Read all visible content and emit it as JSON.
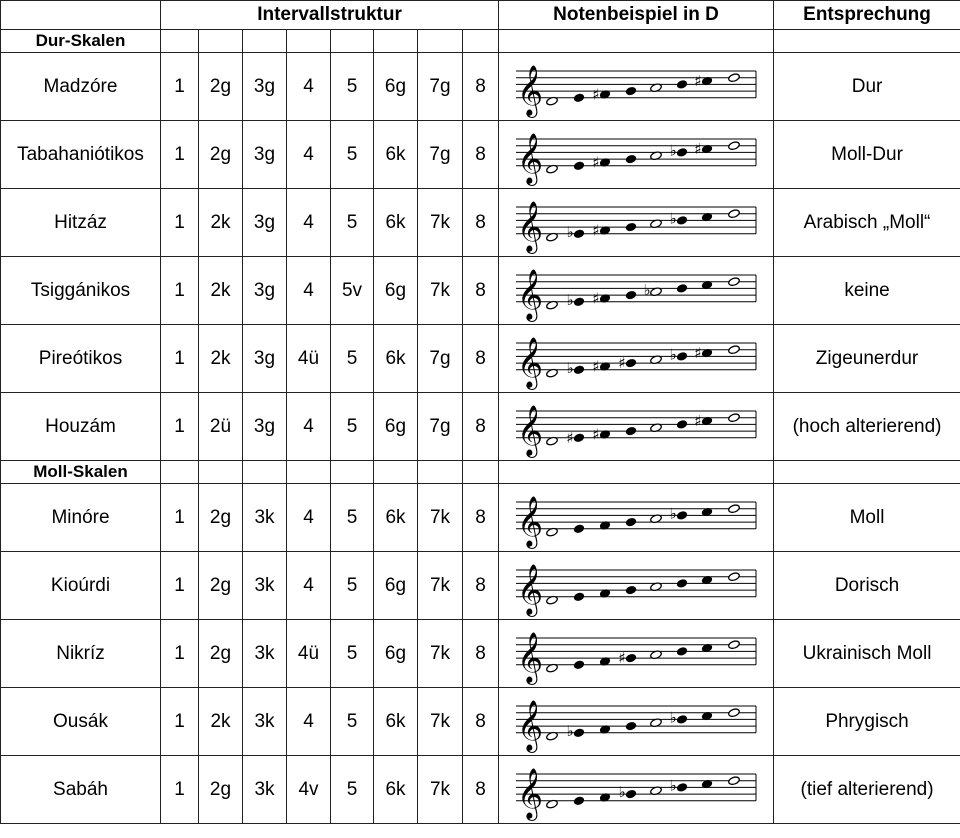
{
  "header": {
    "intervals": "Intervallstruktur",
    "notes": "Notenbeispiel in D",
    "equivalent": "Entsprechung"
  },
  "sections": [
    {
      "title": "Dur-Skalen",
      "rows": [
        {
          "name": "Madzóre",
          "intervals": [
            "1",
            "2g",
            "3g",
            "4",
            "5",
            "6g",
            "7g",
            "8"
          ],
          "accidentals": [
            "",
            "",
            "#",
            "",
            "",
            "",
            "#",
            ""
          ],
          "equivalent": "Dur"
        },
        {
          "name": "Tabahaniótikos",
          "intervals": [
            "1",
            "2g",
            "3g",
            "4",
            "5",
            "6k",
            "7g",
            "8"
          ],
          "accidentals": [
            "",
            "",
            "#",
            "",
            "",
            "b",
            "#",
            ""
          ],
          "equivalent": "Moll-Dur"
        },
        {
          "name": "Hitzáz",
          "intervals": [
            "1",
            "2k",
            "3g",
            "4",
            "5",
            "6k",
            "7k",
            "8"
          ],
          "accidentals": [
            "",
            "b",
            "#",
            "",
            "",
            "b",
            "",
            ""
          ],
          "equivalent": "Arabisch „Moll“"
        },
        {
          "name": "Tsiggánikos",
          "intervals": [
            "1",
            "2k",
            "3g",
            "4",
            "5v",
            "6g",
            "7k",
            "8"
          ],
          "accidentals": [
            "",
            "b",
            "#",
            "",
            "b",
            "",
            "",
            ""
          ],
          "equivalent": "keine"
        },
        {
          "name": "Pireótikos",
          "intervals": [
            "1",
            "2k",
            "3g",
            "4ü",
            "5",
            "6k",
            "7g",
            "8"
          ],
          "accidentals": [
            "",
            "b",
            "#",
            "#",
            "",
            "b",
            "#",
            ""
          ],
          "equivalent": "Zigeunerdur"
        },
        {
          "name": "Houzám",
          "intervals": [
            "1",
            "2ü",
            "3g",
            "4",
            "5",
            "6g",
            "7g",
            "8"
          ],
          "accidentals": [
            "",
            "#",
            "#",
            "",
            "",
            "",
            "#",
            ""
          ],
          "equivalent": "(hoch alterierend)"
        }
      ]
    },
    {
      "title": "Moll-Skalen",
      "rows": [
        {
          "name": "Minóre",
          "intervals": [
            "1",
            "2g",
            "3k",
            "4",
            "5",
            "6k",
            "7k",
            "8"
          ],
          "accidentals": [
            "",
            "",
            "",
            "",
            "",
            "b",
            "",
            ""
          ],
          "equivalent": "Moll"
        },
        {
          "name": "Kioúrdi",
          "intervals": [
            "1",
            "2g",
            "3k",
            "4",
            "5",
            "6g",
            "7k",
            "8"
          ],
          "accidentals": [
            "",
            "",
            "",
            "",
            "",
            "",
            "",
            ""
          ],
          "equivalent": "Dorisch"
        },
        {
          "name": "Nikríz",
          "intervals": [
            "1",
            "2g",
            "3k",
            "4ü",
            "5",
            "6g",
            "7k",
            "8"
          ],
          "accidentals": [
            "",
            "",
            "",
            "#",
            "",
            "",
            "",
            ""
          ],
          "equivalent": "Ukrainisch Moll"
        },
        {
          "name": "Ousák",
          "intervals": [
            "1",
            "2k",
            "3k",
            "4",
            "5",
            "6k",
            "7k",
            "8"
          ],
          "accidentals": [
            "",
            "b",
            "",
            "",
            "",
            "b",
            "",
            ""
          ],
          "equivalent": "Phrygisch"
        },
        {
          "name": "Sabáh",
          "intervals": [
            "1",
            "2g",
            "3k",
            "4v",
            "5",
            "6k",
            "7k",
            "8"
          ],
          "accidentals": [
            "",
            "",
            "",
            "b",
            "",
            "b",
            "",
            ""
          ],
          "equivalent": "(tief alterierend)"
        }
      ]
    }
  ]
}
